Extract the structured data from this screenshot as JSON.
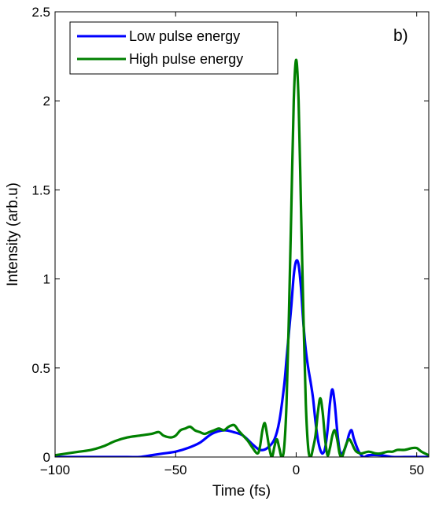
{
  "chart_data": {
    "type": "line",
    "title": "",
    "panel_label": "b)",
    "xlabel": "Time (fs)",
    "ylabel": "Intensity (arb.u)",
    "xlim": [
      -100,
      55
    ],
    "ylim": [
      0,
      2.5
    ],
    "xticks": [
      -100,
      -50,
      0,
      50
    ],
    "xtick_labels": [
      "−100",
      "−50",
      "0",
      "50"
    ],
    "yticks": [
      0,
      0.5,
      1,
      1.5,
      2,
      2.5
    ],
    "ytick_labels": [
      "0",
      "0.5",
      "1",
      "1.5",
      "2",
      "2.5"
    ],
    "grid": false,
    "legend_position": "top-left",
    "series": [
      {
        "name": "Low pulse energy",
        "color": "#0000ff",
        "x": [
          -100,
          -90,
          -80,
          -70,
          -65,
          -60,
          -55,
          -50,
          -45,
          -40,
          -35,
          -30,
          -26,
          -22,
          -18,
          -15,
          -12,
          -9,
          -7,
          -5,
          -4,
          -3,
          -2,
          -1,
          0,
          1,
          2,
          3,
          4,
          5,
          6,
          7,
          8,
          9,
          10,
          11,
          12,
          13,
          14,
          15,
          16,
          17,
          18,
          19,
          20,
          21,
          22,
          23,
          24,
          26,
          28,
          30,
          35,
          40,
          45,
          50,
          55
        ],
        "y": [
          0.0,
          0.0,
          0.0,
          0.0,
          0.0,
          0.01,
          0.02,
          0.03,
          0.05,
          0.08,
          0.13,
          0.15,
          0.14,
          0.12,
          0.07,
          0.04,
          0.05,
          0.1,
          0.2,
          0.4,
          0.55,
          0.7,
          0.85,
          1.02,
          1.1,
          1.08,
          0.95,
          0.75,
          0.6,
          0.5,
          0.42,
          0.33,
          0.2,
          0.1,
          0.04,
          0.02,
          0.05,
          0.15,
          0.3,
          0.38,
          0.3,
          0.15,
          0.04,
          0.02,
          0.04,
          0.08,
          0.13,
          0.15,
          0.1,
          0.03,
          0.0,
          0.01,
          0.01,
          0.0,
          0.0,
          0.0,
          0.0
        ]
      },
      {
        "name": "High pulse energy",
        "color": "#008000",
        "x": [
          -100,
          -95,
          -90,
          -85,
          -80,
          -75,
          -70,
          -65,
          -60,
          -57,
          -55,
          -52,
          -50,
          -48,
          -46,
          -44,
          -42,
          -40,
          -38,
          -36,
          -34,
          -32,
          -30,
          -28,
          -26,
          -25,
          -24,
          -22,
          -20,
          -18,
          -16,
          -15,
          -14,
          -13,
          -12,
          -11,
          -10,
          -9,
          -8,
          -7,
          -6,
          -5,
          -4,
          -3,
          -2,
          -1,
          0,
          1,
          2,
          3,
          4,
          5,
          6,
          7,
          8,
          9,
          10,
          11,
          12,
          13,
          14,
          15,
          16,
          17,
          18,
          19,
          20,
          21,
          22,
          23,
          24,
          25,
          27,
          30,
          33,
          35,
          38,
          40,
          42,
          45,
          48,
          50,
          52,
          55
        ],
        "y": [
          0.01,
          0.02,
          0.03,
          0.04,
          0.06,
          0.09,
          0.11,
          0.12,
          0.13,
          0.14,
          0.12,
          0.11,
          0.12,
          0.15,
          0.16,
          0.17,
          0.15,
          0.14,
          0.13,
          0.14,
          0.15,
          0.16,
          0.15,
          0.17,
          0.18,
          0.17,
          0.15,
          0.12,
          0.09,
          0.05,
          0.02,
          0.06,
          0.15,
          0.19,
          0.12,
          0.04,
          0.0,
          0.06,
          0.1,
          0.05,
          0.0,
          0.05,
          0.3,
          0.8,
          1.4,
          2.0,
          2.23,
          2.0,
          1.4,
          0.8,
          0.3,
          0.05,
          0.0,
          0.05,
          0.12,
          0.25,
          0.33,
          0.25,
          0.1,
          0.01,
          0.05,
          0.12,
          0.15,
          0.1,
          0.02,
          0.0,
          0.04,
          0.08,
          0.1,
          0.08,
          0.05,
          0.03,
          0.02,
          0.03,
          0.02,
          0.02,
          0.03,
          0.03,
          0.04,
          0.04,
          0.05,
          0.05,
          0.03,
          0.01
        ]
      }
    ]
  }
}
